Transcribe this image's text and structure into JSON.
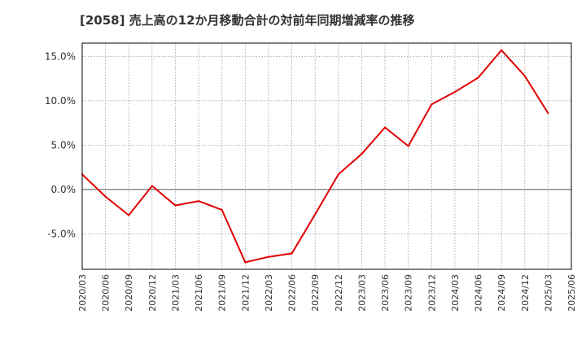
{
  "chart_data": {
    "type": "line",
    "title": "[2058]  売上高の12か月移動合計の対前年同期増減率の推移",
    "xlabel": "",
    "ylabel": "",
    "ylim": [
      -9.0,
      16.5
    ],
    "yticks": [
      15.0,
      10.0,
      5.0,
      0.0,
      -5.0
    ],
    "ytick_labels": [
      "15.0%",
      "10.0%",
      "5.0%",
      "0.0%",
      "-5.0%"
    ],
    "categories": [
      "2020/03",
      "2020/06",
      "2020/09",
      "2020/12",
      "2021/03",
      "2021/06",
      "2021/09",
      "2021/12",
      "2022/03",
      "2022/06",
      "2022/09",
      "2022/12",
      "2023/03",
      "2023/06",
      "2023/09",
      "2023/12",
      "2024/03",
      "2024/06",
      "2024/09",
      "2024/12",
      "2025/03",
      "2025/06"
    ],
    "series": [
      {
        "name": "増減率",
        "color": "#e00000",
        "values": [
          1.7,
          -0.8,
          -2.9,
          0.4,
          -1.8,
          -1.3,
          -2.3,
          -8.2,
          -7.6,
          -7.2,
          -2.8,
          1.7,
          4.0,
          7.0,
          4.9,
          9.6,
          11.0,
          12.6,
          15.7,
          12.8,
          8.6,
          null
        ]
      }
    ],
    "grid": true,
    "legend": "none"
  }
}
